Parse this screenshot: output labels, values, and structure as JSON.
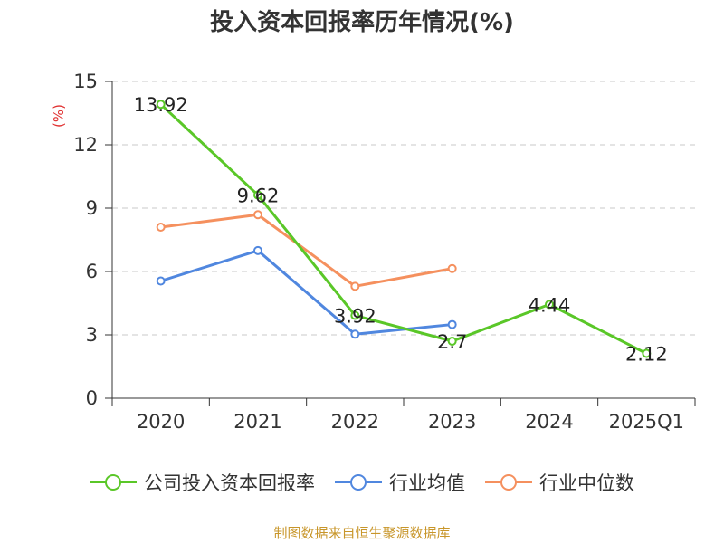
{
  "chart_data": {
    "type": "line",
    "title": "投入资本回报率历年情况(%)",
    "ylabel": "(%)",
    "categories": [
      "2020",
      "2021",
      "2022",
      "2023",
      "2024",
      "2025Q1"
    ],
    "ylim": [
      0,
      15
    ],
    "yticks": [
      0,
      3,
      6,
      9,
      12,
      15
    ],
    "grid": true,
    "legend_position": "bottom",
    "series": [
      {
        "name": "公司投入资本回报率",
        "color": "#5ac728",
        "values": [
          13.92,
          9.62,
          3.92,
          2.7,
          4.44,
          2.12
        ],
        "labels": [
          "13.92",
          "9.62",
          "3.92",
          "2.7",
          "4.44",
          "2.12"
        ]
      },
      {
        "name": "行业均值",
        "color": "#5087df",
        "values": [
          5.55,
          6.99,
          3.03,
          3.49,
          null,
          null
        ]
      },
      {
        "name": "行业中位数",
        "color": "#f5905e",
        "values": [
          8.1,
          8.69,
          5.3,
          6.14,
          null,
          null
        ]
      }
    ]
  },
  "source": "制图数据来自恒生聚源数据库"
}
